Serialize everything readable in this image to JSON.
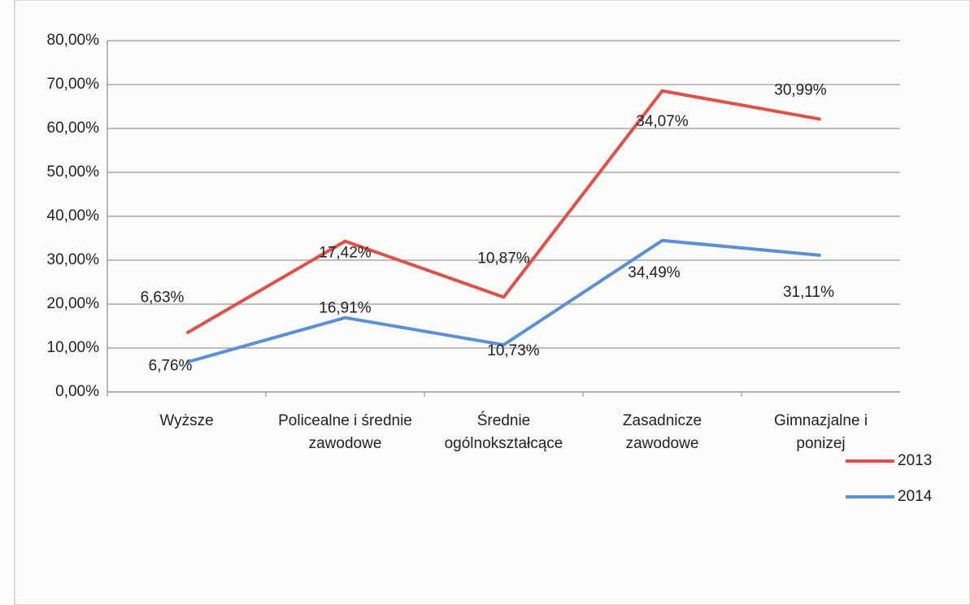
{
  "chart_data": {
    "type": "line",
    "stacked": true,
    "categories": [
      "Wyższe",
      "Policealne i średnie zawodowe",
      "Średnie ogólnokształcące",
      "Zasadnicze zawodowe",
      "Gimnazjalne i ponizej"
    ],
    "series": [
      {
        "name": "2014",
        "color": "#5b8fd6",
        "values": [
          6.76,
          16.91,
          10.73,
          34.49,
          31.11
        ],
        "value_labels": [
          "6,76%",
          "16,91%",
          "10,73%",
          "34,49%",
          "31,11%"
        ]
      },
      {
        "name": "2013",
        "color": "#e0504a",
        "values": [
          6.63,
          17.42,
          10.87,
          34.07,
          30.99
        ],
        "value_labels": [
          "6,63%",
          "17,42%",
          "10,87%",
          "34,07%",
          "30,99%"
        ]
      }
    ],
    "ylim": [
      0,
      80
    ],
    "yticks": [
      {
        "value": 0,
        "label": "0,00%"
      },
      {
        "value": 10,
        "label": "10,00%"
      },
      {
        "value": 20,
        "label": "20,00%"
      },
      {
        "value": 30,
        "label": "30,00%"
      },
      {
        "value": 40,
        "label": "40,00%"
      },
      {
        "value": 50,
        "label": "50,00%"
      },
      {
        "value": 60,
        "label": "60,00%"
      },
      {
        "value": 70,
        "label": "70,00%"
      },
      {
        "value": 80,
        "label": "80,00%"
      }
    ],
    "grid": true,
    "legend": "bottom-right"
  }
}
